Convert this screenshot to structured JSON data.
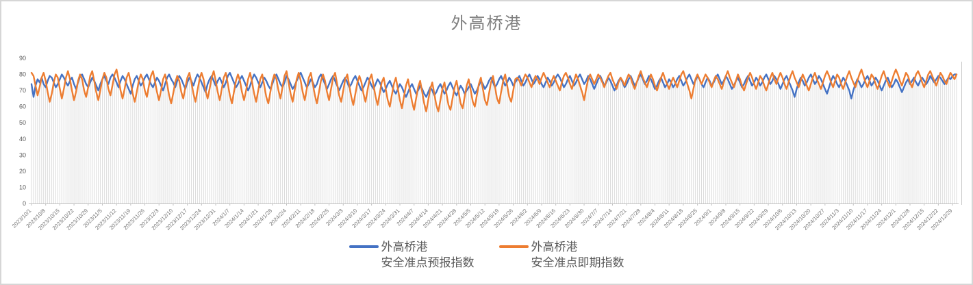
{
  "chart_data": {
    "type": "line",
    "title": "外高桥港",
    "xlabel": "",
    "ylabel": "",
    "ylim": [
      0,
      90
    ],
    "y_ticks": [
      0,
      10,
      20,
      30,
      40,
      50,
      60,
      70,
      80,
      90
    ],
    "grid": false,
    "legend_position": "bottom",
    "x_start": "2023/10/1",
    "x_frequency": "daily",
    "x_tick_interval_days": 7,
    "x_tick_labels": [
      "2023/10/1",
      "2023/10/8",
      "2023/10/15",
      "2023/10/22",
      "2023/10/29",
      "2023/11/5",
      "2023/11/12",
      "2023/11/19",
      "2023/11/26",
      "2023/12/3",
      "2023/12/10",
      "2023/12/17",
      "2023/12/24",
      "2023/12/31",
      "2024/1/7",
      "2024/1/14",
      "2024/1/21",
      "2024/1/28",
      "2024/2/4",
      "2024/2/11",
      "2024/2/18",
      "2024/2/25",
      "2024/3/3",
      "2024/3/10",
      "2024/3/17",
      "2024/3/24",
      "2024/3/31",
      "2024/4/7",
      "2024/4/14",
      "2024/4/21",
      "2024/4/28",
      "2024/5/5",
      "2024/5/12",
      "2024/5/19",
      "2024/5/26",
      "2024/6/2",
      "2024/6/9",
      "2024/6/16",
      "2024/6/23",
      "2024/6/30",
      "2024/7/7",
      "2024/7/14",
      "2024/7/21",
      "2024/7/28",
      "2024/8/4",
      "2024/8/11",
      "2024/8/18",
      "2024/8/25",
      "2024/9/1",
      "2024/9/8",
      "2024/9/15",
      "2024/9/22",
      "2024/9/29",
      "2024/10/6",
      "2024/10/13",
      "2024/10/20",
      "2024/10/27",
      "2024/11/3",
      "2024/11/10",
      "2024/11/17",
      "2024/11/24",
      "2024/12/1",
      "2024/12/8",
      "2024/12/15",
      "2024/12/22",
      "2024/12/29"
    ],
    "drop_lines": true,
    "drop_line_color": "#dcdcdc",
    "axis_color": "#bfbfbf",
    "series": [
      {
        "name": "外高桥港 安全准点预报指数",
        "color": "#4472C4",
        "values": [
          74,
          66,
          73,
          77,
          75,
          78,
          74,
          72,
          76,
          79,
          78,
          75,
          72,
          74,
          77,
          80,
          78,
          75,
          73,
          76,
          78,
          74,
          71,
          75,
          79,
          80,
          77,
          74,
          72,
          75,
          78,
          76,
          73,
          70,
          74,
          77,
          79,
          76,
          74,
          78,
          80,
          78,
          75,
          72,
          76,
          79,
          77,
          74,
          71,
          68,
          73,
          77,
          79,
          76,
          73,
          75,
          78,
          80,
          77,
          74,
          72,
          75,
          78,
          76,
          73,
          70,
          74,
          78,
          80,
          77,
          75,
          72,
          76,
          79,
          77,
          74,
          71,
          75,
          78,
          76,
          73,
          77,
          80,
          78,
          75,
          72,
          69,
          74,
          77,
          79,
          76,
          73,
          76,
          78,
          75,
          72,
          75,
          79,
          81,
          78,
          75,
          72,
          74,
          77,
          79,
          76,
          73,
          70,
          73,
          77,
          80,
          78,
          75,
          72,
          75,
          78,
          76,
          73,
          71,
          74,
          78,
          80,
          77,
          74,
          72,
          75,
          79,
          77,
          74,
          71,
          73,
          76,
          79,
          81,
          78,
          75,
          72,
          74,
          77,
          75,
          72,
          74,
          78,
          80,
          77,
          74,
          71,
          74,
          77,
          79,
          76,
          73,
          70,
          73,
          76,
          78,
          75,
          72,
          74,
          77,
          79,
          76,
          73,
          70,
          72,
          75,
          78,
          76,
          73,
          71,
          74,
          77,
          75,
          72,
          69,
          71,
          74,
          76,
          73,
          70,
          68,
          71,
          74,
          72,
          69,
          66,
          69,
          72,
          74,
          71,
          68,
          70,
          73,
          71,
          68,
          66,
          69,
          72,
          70,
          67,
          69,
          72,
          74,
          71,
          68,
          70,
          73,
          75,
          72,
          69,
          67,
          70,
          73,
          71,
          68,
          70,
          72,
          74,
          71,
          68,
          70,
          73,
          76,
          74,
          71,
          73,
          76,
          78,
          75,
          72,
          74,
          77,
          79,
          76,
          73,
          75,
          78,
          76,
          73,
          75,
          77,
          79,
          76,
          73,
          75,
          78,
          80,
          77,
          74,
          76,
          79,
          77,
          74,
          72,
          75,
          78,
          76,
          73,
          75,
          78,
          80,
          78,
          75,
          72,
          74,
          77,
          79,
          76,
          73,
          75,
          78,
          80,
          77,
          74,
          76,
          79,
          77,
          74,
          71,
          74,
          77,
          79,
          76,
          73,
          75,
          78,
          76,
          73,
          70,
          73,
          76,
          78,
          75,
          72,
          74,
          77,
          79,
          76,
          73,
          75,
          78,
          80,
          77,
          74,
          76,
          79,
          77,
          74,
          71,
          73,
          76,
          78,
          75,
          72,
          74,
          77,
          75,
          72,
          74,
          77,
          79,
          76,
          73,
          75,
          78,
          80,
          77,
          74,
          76,
          79,
          77,
          74,
          72,
          75,
          78,
          76,
          73,
          75,
          78,
          80,
          77,
          74,
          76,
          79,
          77,
          74,
          71,
          73,
          76,
          78,
          75,
          72,
          74,
          77,
          79,
          76,
          73,
          75,
          78,
          76,
          73,
          75,
          78,
          80,
          77,
          74,
          76,
          79,
          77,
          74,
          71,
          74,
          77,
          79,
          76,
          73,
          70,
          66,
          71,
          75,
          78,
          76,
          73,
          75,
          78,
          80,
          77,
          74,
          76,
          79,
          77,
          74,
          71,
          68,
          72,
          76,
          79,
          77,
          74,
          72,
          75,
          78,
          76,
          73,
          70,
          65,
          70,
          74,
          77,
          75,
          72,
          74,
          77,
          79,
          76,
          73,
          75,
          78,
          76,
          73,
          70,
          73,
          76,
          78,
          75,
          72,
          74,
          77,
          75,
          72,
          69,
          72,
          75,
          77,
          74,
          76,
          78,
          75,
          73,
          76,
          78,
          76,
          74,
          76,
          79,
          77,
          75,
          77,
          79,
          78,
          76,
          74,
          76,
          78,
          77,
          79,
          80,
          80
        ]
      },
      {
        "name": "外高桥港 安全准点即期指数",
        "color": "#ED7D31",
        "values": [
          81,
          79,
          73,
          67,
          72,
          78,
          81,
          76,
          69,
          63,
          68,
          75,
          80,
          78,
          71,
          65,
          71,
          78,
          82,
          77,
          70,
          64,
          69,
          76,
          80,
          77,
          70,
          66,
          72,
          79,
          82,
          76,
          69,
          64,
          70,
          77,
          81,
          78,
          71,
          67,
          73,
          80,
          83,
          77,
          70,
          65,
          71,
          78,
          81,
          75,
          68,
          63,
          69,
          76,
          80,
          77,
          70,
          66,
          73,
          79,
          82,
          76,
          69,
          64,
          70,
          77,
          80,
          74,
          67,
          62,
          68,
          75,
          79,
          76,
          69,
          65,
          72,
          78,
          81,
          75,
          68,
          63,
          70,
          77,
          81,
          77,
          70,
          65,
          71,
          78,
          82,
          76,
          69,
          64,
          71,
          78,
          81,
          74,
          67,
          62,
          69,
          76,
          80,
          76,
          69,
          64,
          70,
          77,
          81,
          75,
          68,
          63,
          70,
          77,
          80,
          73,
          66,
          62,
          69,
          76,
          80,
          77,
          70,
          65,
          72,
          79,
          82,
          75,
          68,
          63,
          70,
          77,
          81,
          76,
          69,
          64,
          71,
          78,
          81,
          74,
          67,
          62,
          69,
          76,
          80,
          76,
          69,
          64,
          71,
          78,
          81,
          74,
          67,
          63,
          70,
          77,
          80,
          73,
          66,
          61,
          68,
          75,
          79,
          75,
          68,
          63,
          70,
          77,
          80,
          73,
          66,
          61,
          68,
          75,
          78,
          71,
          64,
          60,
          67,
          74,
          78,
          71,
          64,
          59,
          66,
          73,
          77,
          70,
          63,
          58,
          65,
          72,
          76,
          69,
          62,
          57,
          64,
          71,
          75,
          68,
          61,
          57,
          64,
          71,
          75,
          68,
          61,
          58,
          65,
          72,
          76,
          69,
          62,
          59,
          66,
          73,
          77,
          70,
          63,
          60,
          67,
          74,
          78,
          71,
          64,
          61,
          68,
          75,
          79,
          72,
          65,
          62,
          69,
          76,
          80,
          73,
          66,
          63,
          70,
          77,
          78,
          76,
          73,
          77,
          80,
          78,
          75,
          72,
          76,
          79,
          77,
          74,
          78,
          81,
          78,
          75,
          72,
          76,
          79,
          76,
          73,
          70,
          75,
          79,
          81,
          78,
          74,
          71,
          76,
          80,
          77,
          73,
          69,
          64,
          71,
          77,
          80,
          77,
          74,
          77,
          80,
          78,
          75,
          72,
          76,
          79,
          81,
          77,
          74,
          71,
          75,
          78,
          76,
          73,
          77,
          80,
          78,
          74,
          71,
          75,
          79,
          82,
          78,
          75,
          72,
          76,
          80,
          77,
          73,
          70,
          74,
          78,
          81,
          77,
          74,
          71,
          75,
          78,
          75,
          72,
          76,
          80,
          82,
          78,
          74,
          70,
          65,
          71,
          77,
          80,
          77,
          74,
          77,
          80,
          78,
          75,
          72,
          76,
          79,
          77,
          74,
          71,
          75,
          79,
          82,
          78,
          75,
          72,
          76,
          80,
          77,
          73,
          70,
          74,
          78,
          81,
          78,
          74,
          71,
          75,
          79,
          77,
          73,
          70,
          74,
          78,
          81,
          77,
          74,
          78,
          81,
          78,
          74,
          71,
          75,
          79,
          82,
          78,
          75,
          72,
          76,
          80,
          77,
          73,
          70,
          74,
          78,
          81,
          77,
          74,
          71,
          75,
          79,
          82,
          79,
          75,
          72,
          76,
          80,
          78,
          74,
          71,
          75,
          79,
          82,
          78,
          75,
          72,
          76,
          80,
          83,
          79,
          75,
          72,
          76,
          80,
          78,
          74,
          71,
          75,
          79,
          82,
          78,
          75,
          72,
          76,
          80,
          83,
          80,
          76,
          73,
          77,
          81,
          79,
          75,
          72,
          76,
          80,
          82,
          79,
          75,
          72,
          76,
          80,
          82,
          79,
          76,
          73,
          77,
          81,
          79,
          76,
          74,
          78,
          81,
          79,
          77,
          80
        ]
      }
    ]
  },
  "legend": {
    "items": [
      {
        "line1": "外高桥港",
        "line2": "安全准点预报指数",
        "color": "#4472C4"
      },
      {
        "line1": "外高桥港",
        "line2": "安全准点即期指数",
        "color": "#ED7D31"
      }
    ]
  }
}
